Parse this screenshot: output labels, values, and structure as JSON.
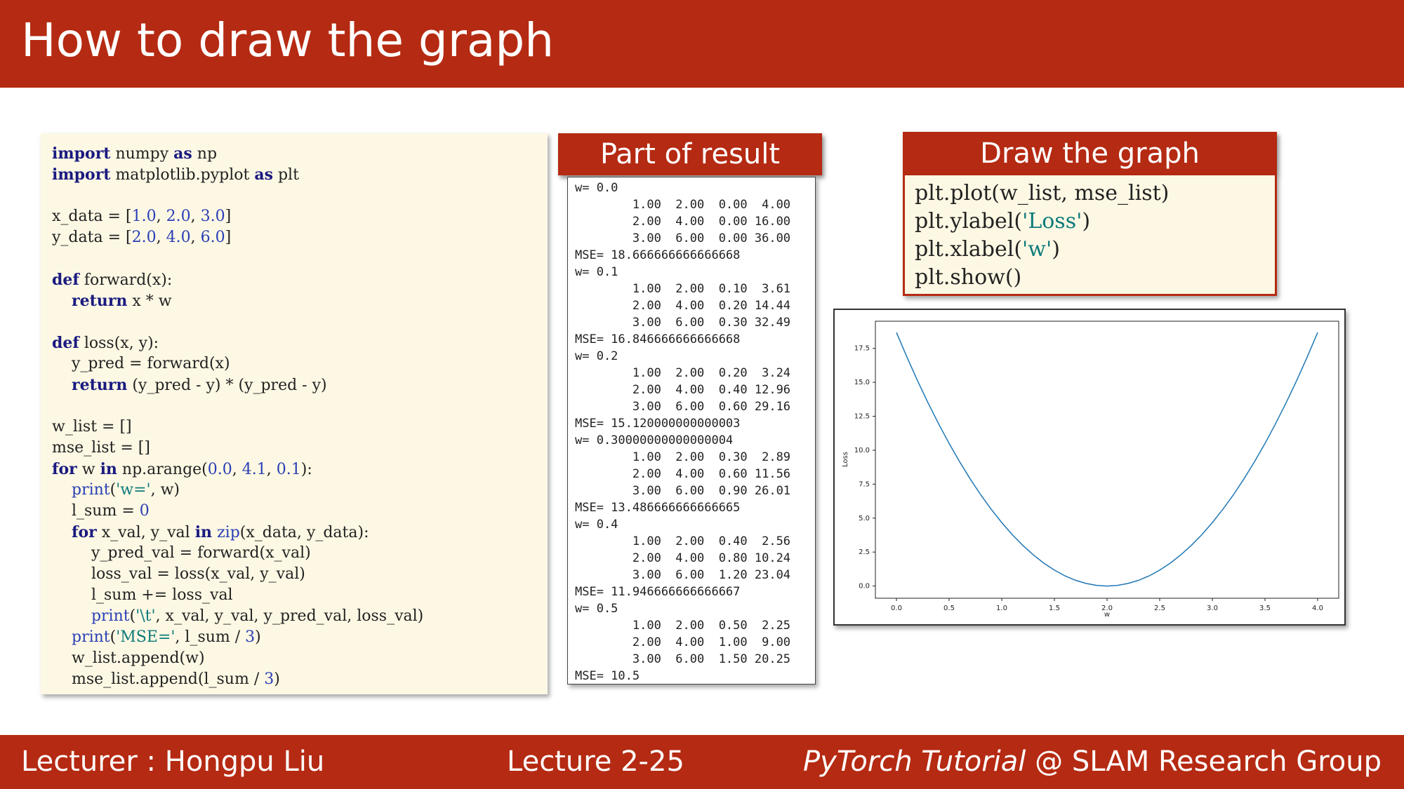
{
  "slide": {
    "title": "How to draw the graph"
  },
  "footer": {
    "lecturer": "Lecturer : Hongpu Liu",
    "lecture": "Lecture 2-25",
    "brand_italic": "PyTorch Tutorial",
    "brand_rest": " @ SLAM Research Group"
  },
  "code": {
    "lines": [
      [
        [
          "kw",
          "import"
        ],
        [
          "t",
          " numpy "
        ],
        [
          "kw",
          "as"
        ],
        [
          "t",
          " np"
        ]
      ],
      [
        [
          "kw",
          "import"
        ],
        [
          "t",
          " matplotlib.pyplot "
        ],
        [
          "kw",
          "as"
        ],
        [
          "t",
          " plt"
        ]
      ],
      [],
      [
        [
          "t",
          "x_data = ["
        ],
        [
          "num",
          "1.0"
        ],
        [
          "t",
          ", "
        ],
        [
          "num",
          "2.0"
        ],
        [
          "t",
          ", "
        ],
        [
          "num",
          "3.0"
        ],
        [
          "t",
          "]"
        ]
      ],
      [
        [
          "t",
          "y_data = ["
        ],
        [
          "num",
          "2.0"
        ],
        [
          "t",
          ", "
        ],
        [
          "num",
          "4.0"
        ],
        [
          "t",
          ", "
        ],
        [
          "num",
          "6.0"
        ],
        [
          "t",
          "]"
        ]
      ],
      [],
      [
        [
          "kw",
          "def"
        ],
        [
          "t",
          " forward(x):"
        ]
      ],
      [
        [
          "t",
          "    "
        ],
        [
          "kw",
          "return"
        ],
        [
          "t",
          " x * w"
        ]
      ],
      [],
      [
        [
          "kw",
          "def"
        ],
        [
          "t",
          " loss(x, y):"
        ]
      ],
      [
        [
          "t",
          "    y_pred = forward(x)"
        ]
      ],
      [
        [
          "t",
          "    "
        ],
        [
          "kw",
          "return"
        ],
        [
          "t",
          " (y_pred - y) * (y_pred - y)"
        ]
      ],
      [],
      [
        [
          "t",
          "w_list = []"
        ]
      ],
      [
        [
          "t",
          "mse_list = []"
        ]
      ],
      [
        [
          "kw",
          "for"
        ],
        [
          "t",
          " w "
        ],
        [
          "kw",
          "in"
        ],
        [
          "t",
          " np.arange("
        ],
        [
          "num",
          "0.0"
        ],
        [
          "t",
          ", "
        ],
        [
          "num",
          "4.1"
        ],
        [
          "t",
          ", "
        ],
        [
          "num",
          "0.1"
        ],
        [
          "t",
          "):"
        ]
      ],
      [
        [
          "t",
          "    "
        ],
        [
          "num",
          "print"
        ],
        [
          "t",
          "("
        ],
        [
          "str",
          "'w='"
        ],
        [
          "t",
          ", w)"
        ]
      ],
      [
        [
          "t",
          "    l_sum = "
        ],
        [
          "num",
          "0"
        ]
      ],
      [
        [
          "t",
          "    "
        ],
        [
          "kw",
          "for"
        ],
        [
          "t",
          " x_val, y_val "
        ],
        [
          "kw",
          "in"
        ],
        [
          "t",
          " "
        ],
        [
          "num",
          "zip"
        ],
        [
          "t",
          "(x_data, y_data):"
        ]
      ],
      [
        [
          "t",
          "        y_pred_val = forward(x_val)"
        ]
      ],
      [
        [
          "t",
          "        loss_val = loss(x_val, y_val)"
        ]
      ],
      [
        [
          "t",
          "        l_sum += loss_val"
        ]
      ],
      [
        [
          "t",
          "        "
        ],
        [
          "num",
          "print"
        ],
        [
          "t",
          "("
        ],
        [
          "str",
          "'\\t'"
        ],
        [
          "t",
          ", x_val, y_val, y_pred_val, loss_val)"
        ]
      ],
      [
        [
          "t",
          "    "
        ],
        [
          "num",
          "print"
        ],
        [
          "t",
          "("
        ],
        [
          "str",
          "'MSE='"
        ],
        [
          "t",
          ", l_sum / "
        ],
        [
          "num",
          "3"
        ],
        [
          "t",
          ")"
        ]
      ],
      [
        [
          "t",
          "    w_list.append(w)"
        ]
      ],
      [
        [
          "t",
          "    mse_list.append(l_sum / "
        ],
        [
          "num",
          "3"
        ],
        [
          "t",
          ")"
        ]
      ]
    ]
  },
  "result": {
    "header": "Part of result",
    "lines": [
      "w= 0.0",
      "        1.00  2.00  0.00  4.00",
      "        2.00  4.00  0.00 16.00",
      "        3.00  6.00  0.00 36.00",
      "MSE= 18.666666666666668",
      "w= 0.1",
      "        1.00  2.00  0.10  3.61",
      "        2.00  4.00  0.20 14.44",
      "        3.00  6.00  0.30 32.49",
      "MSE= 16.846666666666668",
      "w= 0.2",
      "        1.00  2.00  0.20  3.24",
      "        2.00  4.00  0.40 12.96",
      "        3.00  6.00  0.60 29.16",
      "MSE= 15.120000000000003",
      "w= 0.30000000000000004",
      "        1.00  2.00  0.30  2.89",
      "        2.00  4.00  0.60 11.56",
      "        3.00  6.00  0.90 26.01",
      "MSE= 13.486666666666665",
      "w= 0.4",
      "        1.00  2.00  0.40  2.56",
      "        2.00  4.00  0.80 10.24",
      "        3.00  6.00  1.20 23.04",
      "MSE= 11.946666666666667",
      "w= 0.5",
      "        1.00  2.00  0.50  2.25",
      "        2.00  4.00  1.00  9.00",
      "        3.00  6.00  1.50 20.25",
      "MSE= 10.5"
    ]
  },
  "draw": {
    "header": "Draw the graph",
    "lines": [
      [
        [
          "t",
          "plt.plot(w_list, mse_list)"
        ]
      ],
      [
        [
          "t",
          "plt.ylabel("
        ],
        [
          "str",
          "'Loss'"
        ],
        [
          "t",
          ")"
        ]
      ],
      [
        [
          "t",
          "plt.xlabel("
        ],
        [
          "str",
          "'w'"
        ],
        [
          "t",
          ")"
        ]
      ],
      [
        [
          "t",
          "plt.show()"
        ]
      ]
    ]
  },
  "colors": {
    "brand_red": "#b52a12",
    "code_bg": "#fdf8e4",
    "keyword": "#1a1a80",
    "number": "#2a3fb5",
    "string": "#0d7a7a",
    "line": "#1f77b4"
  },
  "chart_data": {
    "type": "line",
    "title": "",
    "xlabel": "w",
    "ylabel": "Loss",
    "xlim": [
      -0.2,
      4.2
    ],
    "ylim": [
      -0.9,
      19.5
    ],
    "xticks": [
      "0.0",
      "0.5",
      "1.0",
      "1.5",
      "2.0",
      "2.5",
      "3.0",
      "3.5",
      "4.0"
    ],
    "yticks": [
      "0.0",
      "2.5",
      "5.0",
      "7.5",
      "10.0",
      "12.5",
      "15.0",
      "17.5"
    ],
    "grid": false,
    "legend": "none",
    "series": [
      {
        "x": [
          0.0,
          0.1,
          0.2,
          0.3,
          0.4,
          0.5,
          0.6,
          0.7,
          0.8,
          0.9,
          1.0,
          1.1,
          1.2,
          1.3,
          1.4,
          1.5,
          1.6,
          1.7,
          1.8,
          1.9,
          2.0,
          2.1,
          2.2,
          2.3,
          2.4,
          2.5,
          2.6,
          2.7,
          2.8,
          2.9,
          3.0,
          3.1,
          3.2,
          3.3,
          3.4,
          3.5,
          3.6,
          3.7,
          3.8,
          3.9,
          4.0
        ],
        "y": [
          18.67,
          16.85,
          15.12,
          13.49,
          11.95,
          10.5,
          9.15,
          7.89,
          6.72,
          5.65,
          4.67,
          3.78,
          2.99,
          2.29,
          1.68,
          1.17,
          0.75,
          0.42,
          0.19,
          0.05,
          0.0,
          0.05,
          0.19,
          0.42,
          0.75,
          1.17,
          1.68,
          2.29,
          2.99,
          3.78,
          4.67,
          5.65,
          6.72,
          7.89,
          9.15,
          10.5,
          11.95,
          13.49,
          15.12,
          16.85,
          18.67
        ]
      }
    ]
  }
}
